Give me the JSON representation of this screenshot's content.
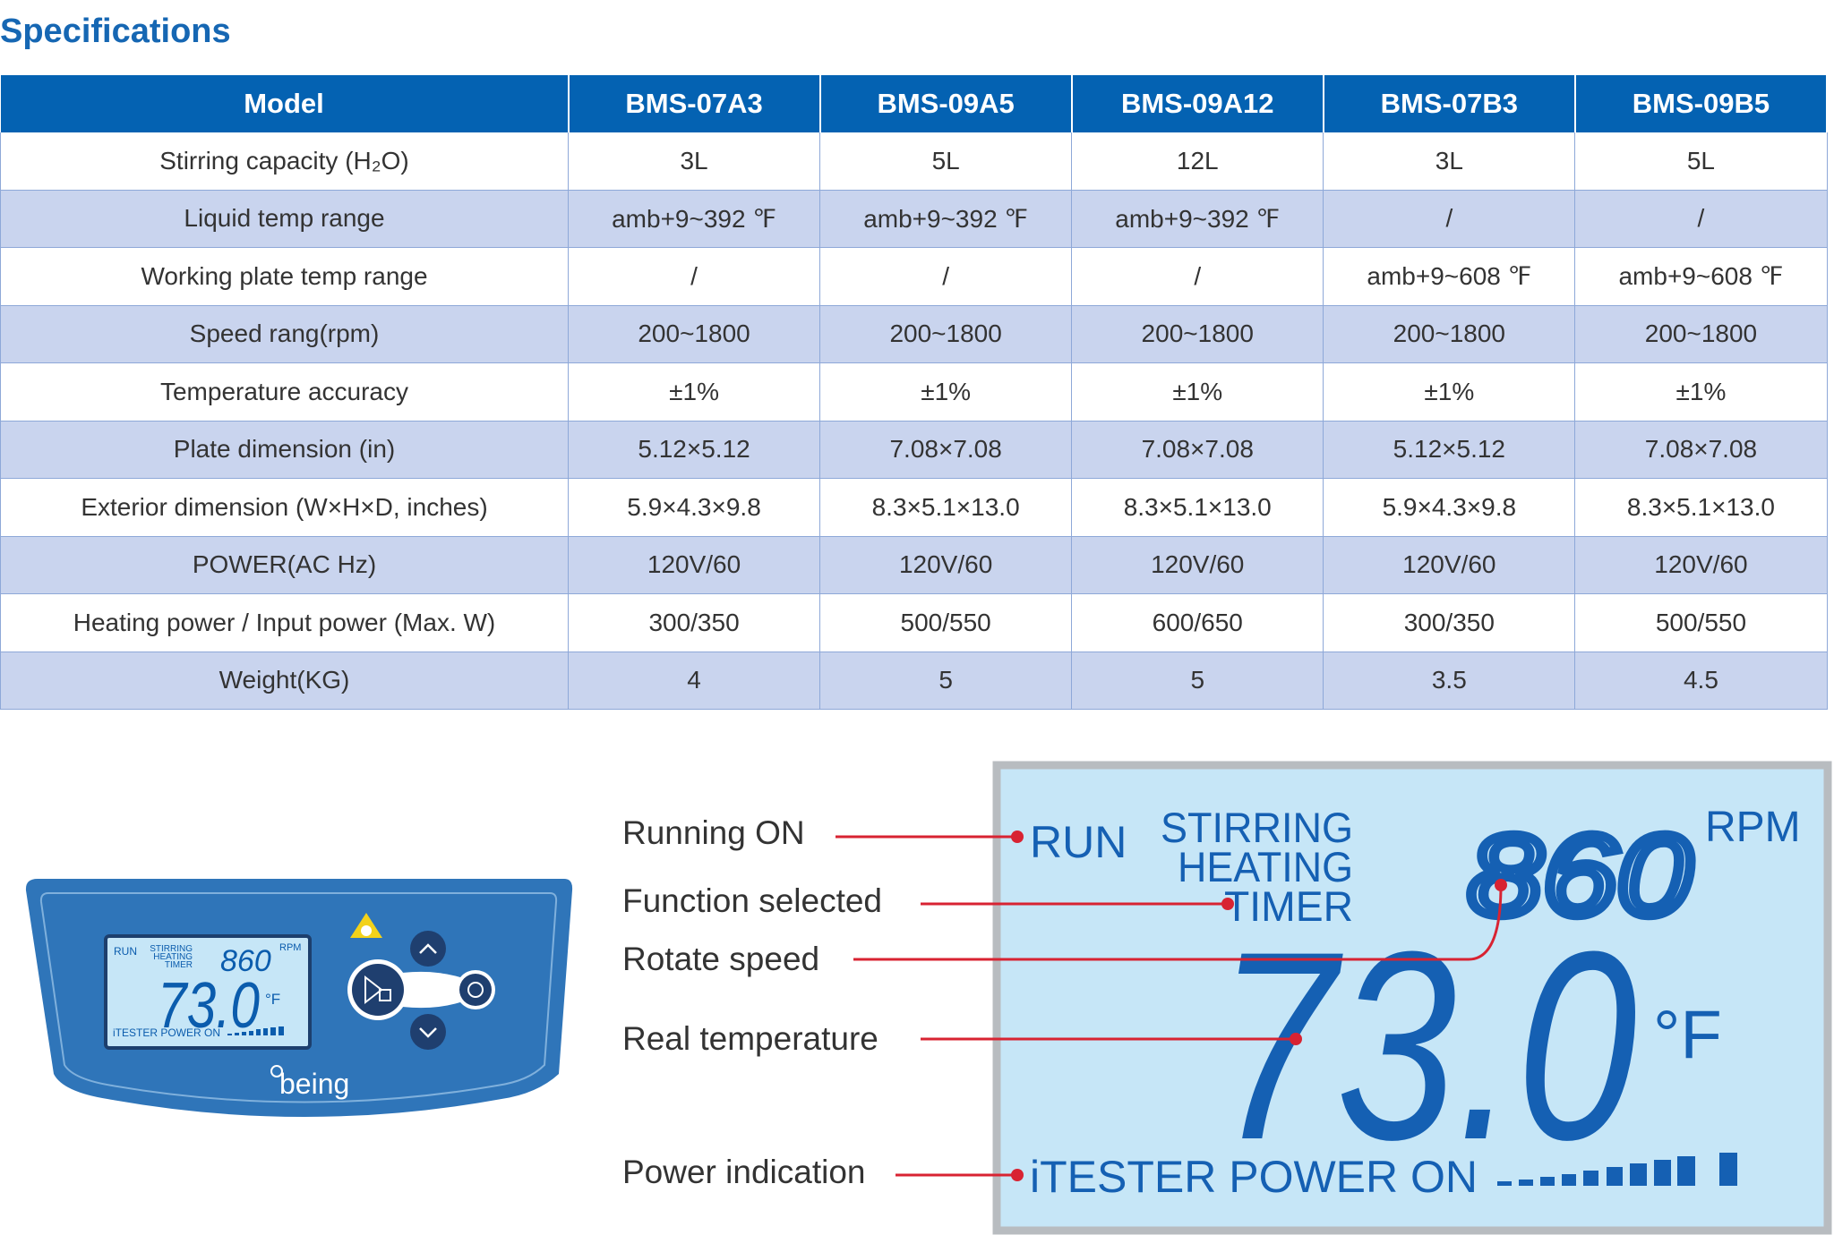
{
  "title": "Specifications",
  "table": {
    "header": [
      "Model",
      "BMS-07A3",
      "BMS-09A5",
      "BMS-09A12",
      "BMS-07B3",
      "BMS-09B5"
    ],
    "rows": [
      [
        "Stirring capacity (H₂O)",
        "3L",
        "5L",
        "12L",
        "3L",
        "5L"
      ],
      [
        "Liquid temp range",
        "amb+9~392 ℉",
        "amb+9~392 ℉",
        "amb+9~392 ℉",
        "/",
        "/"
      ],
      [
        "Working plate temp range",
        "/",
        "/",
        "/",
        "amb+9~608 ℉",
        "amb+9~608 ℉"
      ],
      [
        "Speed rang(rpm)",
        "200~1800",
        "200~1800",
        "200~1800",
        "200~1800",
        "200~1800"
      ],
      [
        "Temperature accuracy",
        "±1%",
        "±1%",
        "±1%",
        "±1%",
        "±1%"
      ],
      [
        "Plate dimension (in)",
        "5.12×5.12",
        "7.08×7.08",
        "7.08×7.08",
        "5.12×5.12",
        "7.08×7.08"
      ],
      [
        "Exterior dimension (W×H×D, inches)",
        "5.9×4.3×9.8",
        "8.3×5.1×13.0",
        "8.3×5.1×13.0",
        "5.9×4.3×9.8",
        "8.3×5.1×13.0"
      ],
      [
        "POWER(AC Hz)",
        "120V/60",
        "120V/60",
        "120V/60",
        "120V/60",
        "120V/60"
      ],
      [
        "Heating power / Input power (Max. W)",
        "300/350",
        "500/550",
        "600/650",
        "300/350",
        "500/550"
      ],
      [
        "Weight(KG)",
        "4",
        "5",
        "5",
        "3.5",
        "4.5"
      ]
    ]
  },
  "callouts": [
    "Running ON",
    "Function selected",
    "Rotate speed",
    "Real temperature",
    "Power indication"
  ],
  "lcd": {
    "run": "RUN",
    "functions": [
      "STIRRING",
      "HEATING",
      "TIMER"
    ],
    "speed": "860",
    "speed_unit": "RPM",
    "temperature": "73.0",
    "temp_unit": "°F",
    "power": "iTESTER POWER ON"
  },
  "panel": {
    "brand": "being"
  }
}
